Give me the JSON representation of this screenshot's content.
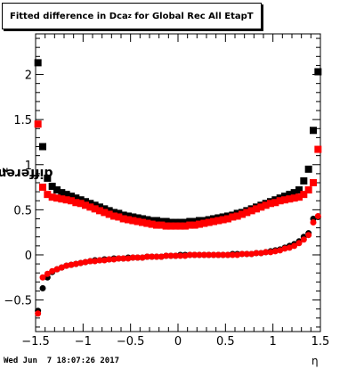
{
  "chart_data": {
    "type": "scatter",
    "title": "Fitted difference in Dca",
    "title_sub": "z",
    "title_rest": " for Global Rec All EtapT",
    "ylabel": "difference in Dca",
    "ylabel_sub": "z",
    "xlabel": "η",
    "xlim": [
      -1.5,
      1.5
    ],
    "ylim": [
      -0.85,
      2.45
    ],
    "x_ticks": [
      -1.5,
      -1,
      -0.5,
      0,
      0.5,
      1,
      1.5
    ],
    "x_tick_labels": [
      "−1.5",
      "−1",
      "−0.5",
      "0",
      "0.5",
      "1",
      "1.5"
    ],
    "y_ticks": [
      -0.5,
      0,
      0.5,
      1,
      1.5,
      2
    ],
    "y_tick_labels": [
      "−0.5",
      "0",
      "0.5",
      "1",
      "1.5",
      "2"
    ],
    "grid": false,
    "series": [
      {
        "color": "#000000",
        "marker": "square",
        "x": [
          -1.475,
          -1.425,
          -1.375,
          -1.325,
          -1.275,
          -1.225,
          -1.175,
          -1.125,
          -1.075,
          -1.025,
          -0.975,
          -0.925,
          -0.875,
          -0.825,
          -0.775,
          -0.725,
          -0.675,
          -0.625,
          -0.575,
          -0.525,
          -0.475,
          -0.425,
          -0.375,
          -0.325,
          -0.275,
          -0.225,
          -0.175,
          -0.125,
          -0.075,
          -0.025,
          0.025,
          0.075,
          0.125,
          0.175,
          0.225,
          0.275,
          0.325,
          0.375,
          0.425,
          0.475,
          0.525,
          0.575,
          0.625,
          0.675,
          0.725,
          0.775,
          0.825,
          0.875,
          0.925,
          0.975,
          1.025,
          1.075,
          1.125,
          1.175,
          1.225,
          1.275,
          1.325,
          1.375,
          1.425,
          1.475
        ],
        "y": [
          2.13,
          1.2,
          0.85,
          0.76,
          0.72,
          0.69,
          0.67,
          0.65,
          0.63,
          0.61,
          0.59,
          0.57,
          0.55,
          0.53,
          0.51,
          0.49,
          0.47,
          0.46,
          0.44,
          0.43,
          0.42,
          0.41,
          0.4,
          0.39,
          0.38,
          0.38,
          0.37,
          0.37,
          0.36,
          0.36,
          0.36,
          0.36,
          0.37,
          0.37,
          0.38,
          0.38,
          0.39,
          0.4,
          0.41,
          0.42,
          0.43,
          0.44,
          0.46,
          0.47,
          0.49,
          0.51,
          0.53,
          0.55,
          0.57,
          0.59,
          0.61,
          0.63,
          0.65,
          0.67,
          0.69,
          0.72,
          0.82,
          0.95,
          1.38,
          2.03
        ]
      },
      {
        "color": "#000000",
        "marker": "circle",
        "x": [
          -1.475,
          -1.425,
          -1.375,
          -1.325,
          -1.275,
          -1.225,
          -1.175,
          -1.125,
          -1.075,
          -1.025,
          -0.975,
          -0.925,
          -0.875,
          -0.825,
          -0.775,
          -0.725,
          -0.675,
          -0.625,
          -0.575,
          -0.525,
          -0.475,
          -0.425,
          -0.375,
          -0.325,
          -0.275,
          -0.225,
          -0.175,
          -0.125,
          -0.075,
          -0.025,
          0.025,
          0.075,
          0.125,
          0.175,
          0.225,
          0.275,
          0.325,
          0.375,
          0.425,
          0.475,
          0.525,
          0.575,
          0.625,
          0.675,
          0.725,
          0.775,
          0.825,
          0.875,
          0.925,
          0.975,
          1.025,
          1.075,
          1.125,
          1.175,
          1.225,
          1.275,
          1.325,
          1.375,
          1.425,
          1.475
        ],
        "y": [
          -0.62,
          -0.37,
          -0.25,
          -0.19,
          -0.16,
          -0.14,
          -0.12,
          -0.11,
          -0.1,
          -0.09,
          -0.08,
          -0.07,
          -0.06,
          -0.06,
          -0.05,
          -0.05,
          -0.04,
          -0.04,
          -0.04,
          -0.03,
          -0.03,
          -0.03,
          -0.03,
          -0.02,
          -0.02,
          -0.02,
          -0.02,
          -0.01,
          -0.01,
          -0.01,
          0.0,
          0.0,
          0.0,
          0.0,
          0.0,
          0.0,
          0.0,
          0.0,
          0.0,
          0.0,
          0.0,
          0.01,
          0.01,
          0.01,
          0.01,
          0.01,
          0.02,
          0.02,
          0.03,
          0.04,
          0.05,
          0.06,
          0.08,
          0.1,
          0.12,
          0.15,
          0.2,
          0.24,
          0.4,
          0.42
        ]
      },
      {
        "color": "#ff0000",
        "marker": "square",
        "x": [
          -1.475,
          -1.425,
          -1.375,
          -1.325,
          -1.275,
          -1.225,
          -1.175,
          -1.125,
          -1.075,
          -1.025,
          -0.975,
          -0.925,
          -0.875,
          -0.825,
          -0.775,
          -0.725,
          -0.675,
          -0.625,
          -0.575,
          -0.525,
          -0.475,
          -0.425,
          -0.375,
          -0.325,
          -0.275,
          -0.225,
          -0.175,
          -0.125,
          -0.075,
          -0.025,
          0.025,
          0.075,
          0.125,
          0.175,
          0.225,
          0.275,
          0.325,
          0.375,
          0.425,
          0.475,
          0.525,
          0.575,
          0.625,
          0.675,
          0.725,
          0.775,
          0.825,
          0.875,
          0.925,
          0.975,
          1.025,
          1.075,
          1.125,
          1.175,
          1.225,
          1.275,
          1.325,
          1.375,
          1.425,
          1.475
        ],
        "y": [
          1.45,
          0.75,
          0.67,
          0.64,
          0.63,
          0.62,
          0.61,
          0.6,
          0.58,
          0.57,
          0.55,
          0.53,
          0.51,
          0.49,
          0.47,
          0.45,
          0.43,
          0.42,
          0.4,
          0.39,
          0.38,
          0.37,
          0.36,
          0.35,
          0.34,
          0.33,
          0.33,
          0.32,
          0.32,
          0.32,
          0.32,
          0.32,
          0.33,
          0.33,
          0.34,
          0.35,
          0.36,
          0.37,
          0.38,
          0.39,
          0.4,
          0.42,
          0.43,
          0.45,
          0.47,
          0.49,
          0.51,
          0.53,
          0.55,
          0.57,
          0.58,
          0.6,
          0.61,
          0.62,
          0.63,
          0.64,
          0.67,
          0.72,
          0.8,
          1.17
        ]
      },
      {
        "color": "#ff0000",
        "marker": "circle",
        "x": [
          -1.475,
          -1.425,
          -1.375,
          -1.325,
          -1.275,
          -1.225,
          -1.175,
          -1.125,
          -1.075,
          -1.025,
          -0.975,
          -0.925,
          -0.875,
          -0.825,
          -0.775,
          -0.725,
          -0.675,
          -0.625,
          -0.575,
          -0.525,
          -0.475,
          -0.425,
          -0.375,
          -0.325,
          -0.275,
          -0.225,
          -0.175,
          -0.125,
          -0.075,
          -0.025,
          0.025,
          0.075,
          0.125,
          0.175,
          0.225,
          0.275,
          0.325,
          0.375,
          0.425,
          0.475,
          0.525,
          0.575,
          0.625,
          0.675,
          0.725,
          0.775,
          0.825,
          0.875,
          0.925,
          0.975,
          1.025,
          1.075,
          1.125,
          1.175,
          1.225,
          1.275,
          1.325,
          1.375,
          1.425,
          1.475
        ],
        "y": [
          -0.65,
          -0.25,
          -0.21,
          -0.18,
          -0.16,
          -0.14,
          -0.12,
          -0.11,
          -0.1,
          -0.09,
          -0.08,
          -0.07,
          -0.07,
          -0.06,
          -0.06,
          -0.05,
          -0.05,
          -0.04,
          -0.04,
          -0.04,
          -0.03,
          -0.03,
          -0.03,
          -0.02,
          -0.02,
          -0.02,
          -0.02,
          -0.01,
          -0.01,
          -0.01,
          -0.01,
          -0.01,
          0.0,
          0.0,
          0.0,
          0.0,
          0.0,
          0.0,
          0.0,
          0.0,
          0.0,
          0.0,
          0.0,
          0.01,
          0.01,
          0.01,
          0.02,
          0.02,
          0.03,
          0.03,
          0.04,
          0.05,
          0.07,
          0.08,
          0.1,
          0.13,
          0.17,
          0.22,
          0.36,
          0.43
        ]
      }
    ]
  },
  "footer": {
    "timestamp": "Wed Jun  7 18:07:26 2017"
  }
}
